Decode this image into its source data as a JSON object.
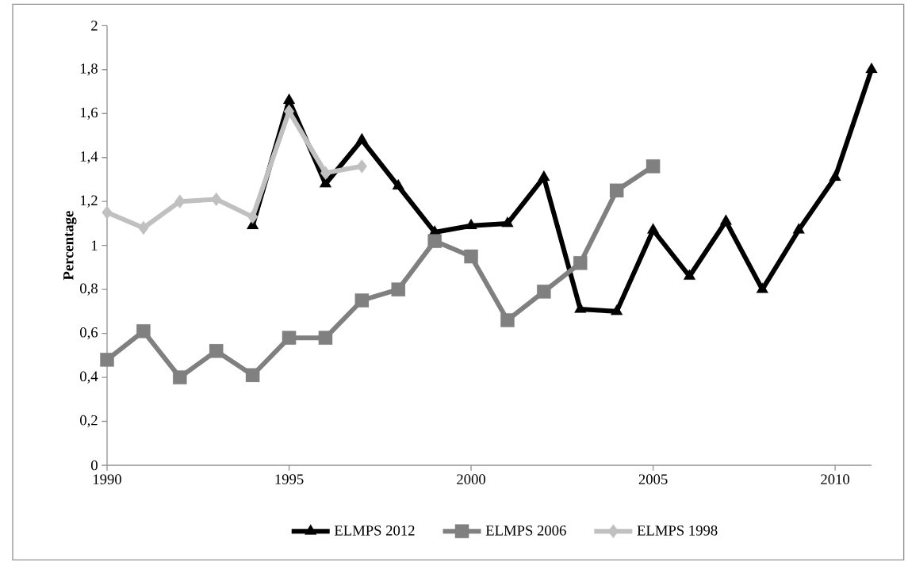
{
  "chart_data": {
    "type": "line",
    "ylabel": "**Percentage**",
    "series": [
      {
        "name": "ELMPS 2012",
        "color": "#000000",
        "marker": "triangle",
        "x": [
          1994,
          1995,
          1996,
          1997,
          1998,
          1999,
          2000,
          2001,
          2002,
          2003,
          2004,
          2005,
          2006,
          2007,
          2008,
          2009,
          2010,
          2011
        ],
        "values": [
          1.09,
          1.66,
          1.28,
          1.48,
          1.27,
          1.06,
          1.09,
          1.1,
          1.31,
          0.71,
          0.7,
          1.07,
          0.86,
          1.11,
          0.8,
          1.07,
          1.31,
          1.8
        ]
      },
      {
        "name": "ELMPS 2006",
        "color": "#808080",
        "marker": "square",
        "x": [
          1990,
          1991,
          1992,
          1993,
          1994,
          1995,
          1996,
          1997,
          1998,
          1999,
          2000,
          2001,
          2002,
          2003,
          2004,
          2005
        ],
        "values": [
          0.48,
          0.61,
          0.4,
          0.52,
          0.41,
          0.58,
          0.58,
          0.75,
          0.8,
          1.02,
          0.95,
          0.66,
          0.79,
          0.92,
          1.25,
          1.36
        ]
      },
      {
        "name": "ELMPS 1998",
        "color": "#c0c0c0",
        "marker": "diamond",
        "x": [
          1990,
          1991,
          1992,
          1993,
          1994,
          1995,
          1996,
          1997
        ],
        "values": [
          1.15,
          1.08,
          1.2,
          1.21,
          1.13,
          1.61,
          1.33,
          1.36
        ]
      }
    ],
    "xlim": [
      1990,
      2011
    ],
    "xticks": [
      1990,
      1995,
      2000,
      2005,
      2010
    ],
    "ylim": [
      0,
      2
    ],
    "yticks": [
      0,
      {
        "value": 0.2,
        "label": "0,2"
      },
      {
        "value": 0.4,
        "label": "0,4"
      },
      {
        "value": 0.6,
        "label": "0,6"
      },
      {
        "value": 0.8,
        "label": "0,8"
      },
      1,
      {
        "value": 1.2,
        "label": "1,2"
      },
      {
        "value": 1.4,
        "label": "1,4"
      },
      {
        "value": 1.6,
        "label": "1,6"
      },
      {
        "value": 1.8,
        "label": "1,8"
      },
      2
    ],
    "grid": false,
    "legend": "bottom",
    "line_style": "solid"
  }
}
